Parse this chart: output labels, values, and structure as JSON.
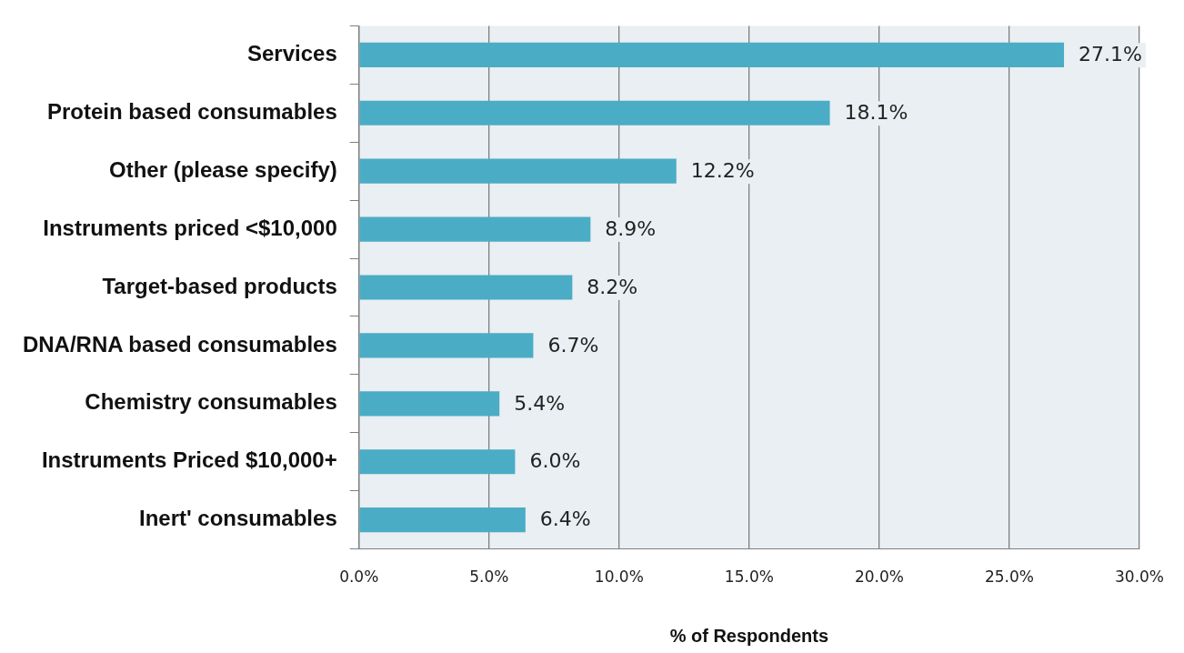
{
  "chart_data": {
    "type": "bar",
    "orientation": "horizontal",
    "xlabel": "% of Respondents",
    "categories": [
      "Services",
      "Protein based consumables",
      "Other (please specify)",
      "Instruments priced <$10,000",
      "Target-based products",
      "DNA/RNA based consumables",
      "Chemistry consumables",
      "Instruments Priced $10,000+",
      "Inert' consumables"
    ],
    "values": [
      27.1,
      18.1,
      12.2,
      8.9,
      8.2,
      6.7,
      5.4,
      6.0,
      6.4
    ],
    "value_labels": [
      "27.1%",
      "18.1%",
      "12.2%",
      "8.9%",
      "8.2%",
      "6.7%",
      "5.4%",
      "6.0%",
      "6.4%"
    ],
    "color": "#4bacc6",
    "xlim": [
      0,
      30
    ],
    "xticks": [
      {
        "value": 0,
        "label": "0.0%"
      },
      {
        "value": 5,
        "label": "5.0%"
      },
      {
        "value": 10,
        "label": "10.0%"
      },
      {
        "value": 15,
        "label": "15.0%"
      },
      {
        "value": 20,
        "label": "20.0%"
      },
      {
        "value": 25,
        "label": "25.0%"
      },
      {
        "value": 30,
        "label": "30.0%"
      }
    ],
    "grid": "x",
    "legend": false
  }
}
